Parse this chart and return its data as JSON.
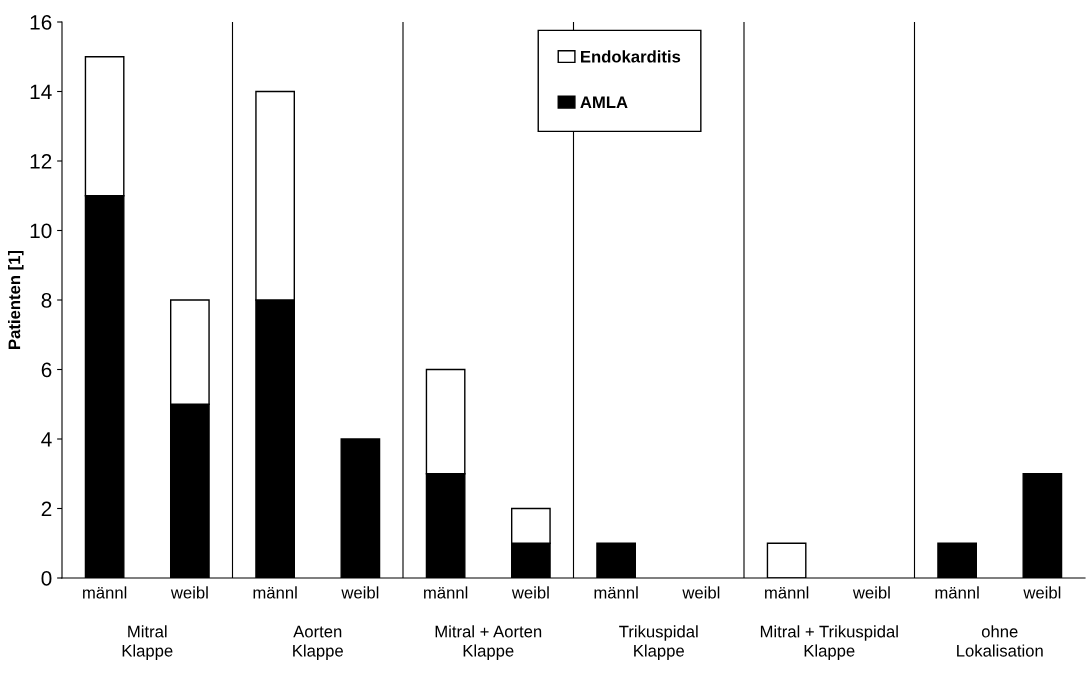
{
  "chart_data": {
    "type": "bar",
    "stacked": true,
    "ylabel": "Patienten [1]",
    "categories": [
      "männl",
      "weibl",
      "männl",
      "weibl",
      "männl",
      "weibl",
      "männl",
      "weibl",
      "männl",
      "weibl",
      "männl",
      "weibl"
    ],
    "series": [
      {
        "name": "AMLA",
        "color": "#000000",
        "values": [
          11,
          5,
          8,
          4,
          3,
          1,
          1,
          0,
          0,
          0,
          1,
          3
        ]
      },
      {
        "name": "Endokarditis",
        "color": "#ffffff",
        "values": [
          4,
          3,
          6,
          0,
          3,
          1,
          0,
          0,
          1,
          0,
          0,
          0
        ]
      }
    ],
    "annotations": [
      "Mitral\nKlappe",
      "Aorten\nKlappe",
      "Mitral + Aorten\nKlappe",
      "Trikuspidal\nKlappe",
      "Mitral + Trikuspidal\nKlappe",
      "ohne\nLokalisation"
    ],
    "ylim": [
      0,
      16
    ],
    "yticks": [
      0,
      2,
      4,
      6,
      8,
      10,
      12,
      14,
      16
    ],
    "grid": false,
    "legend": "top center"
  }
}
